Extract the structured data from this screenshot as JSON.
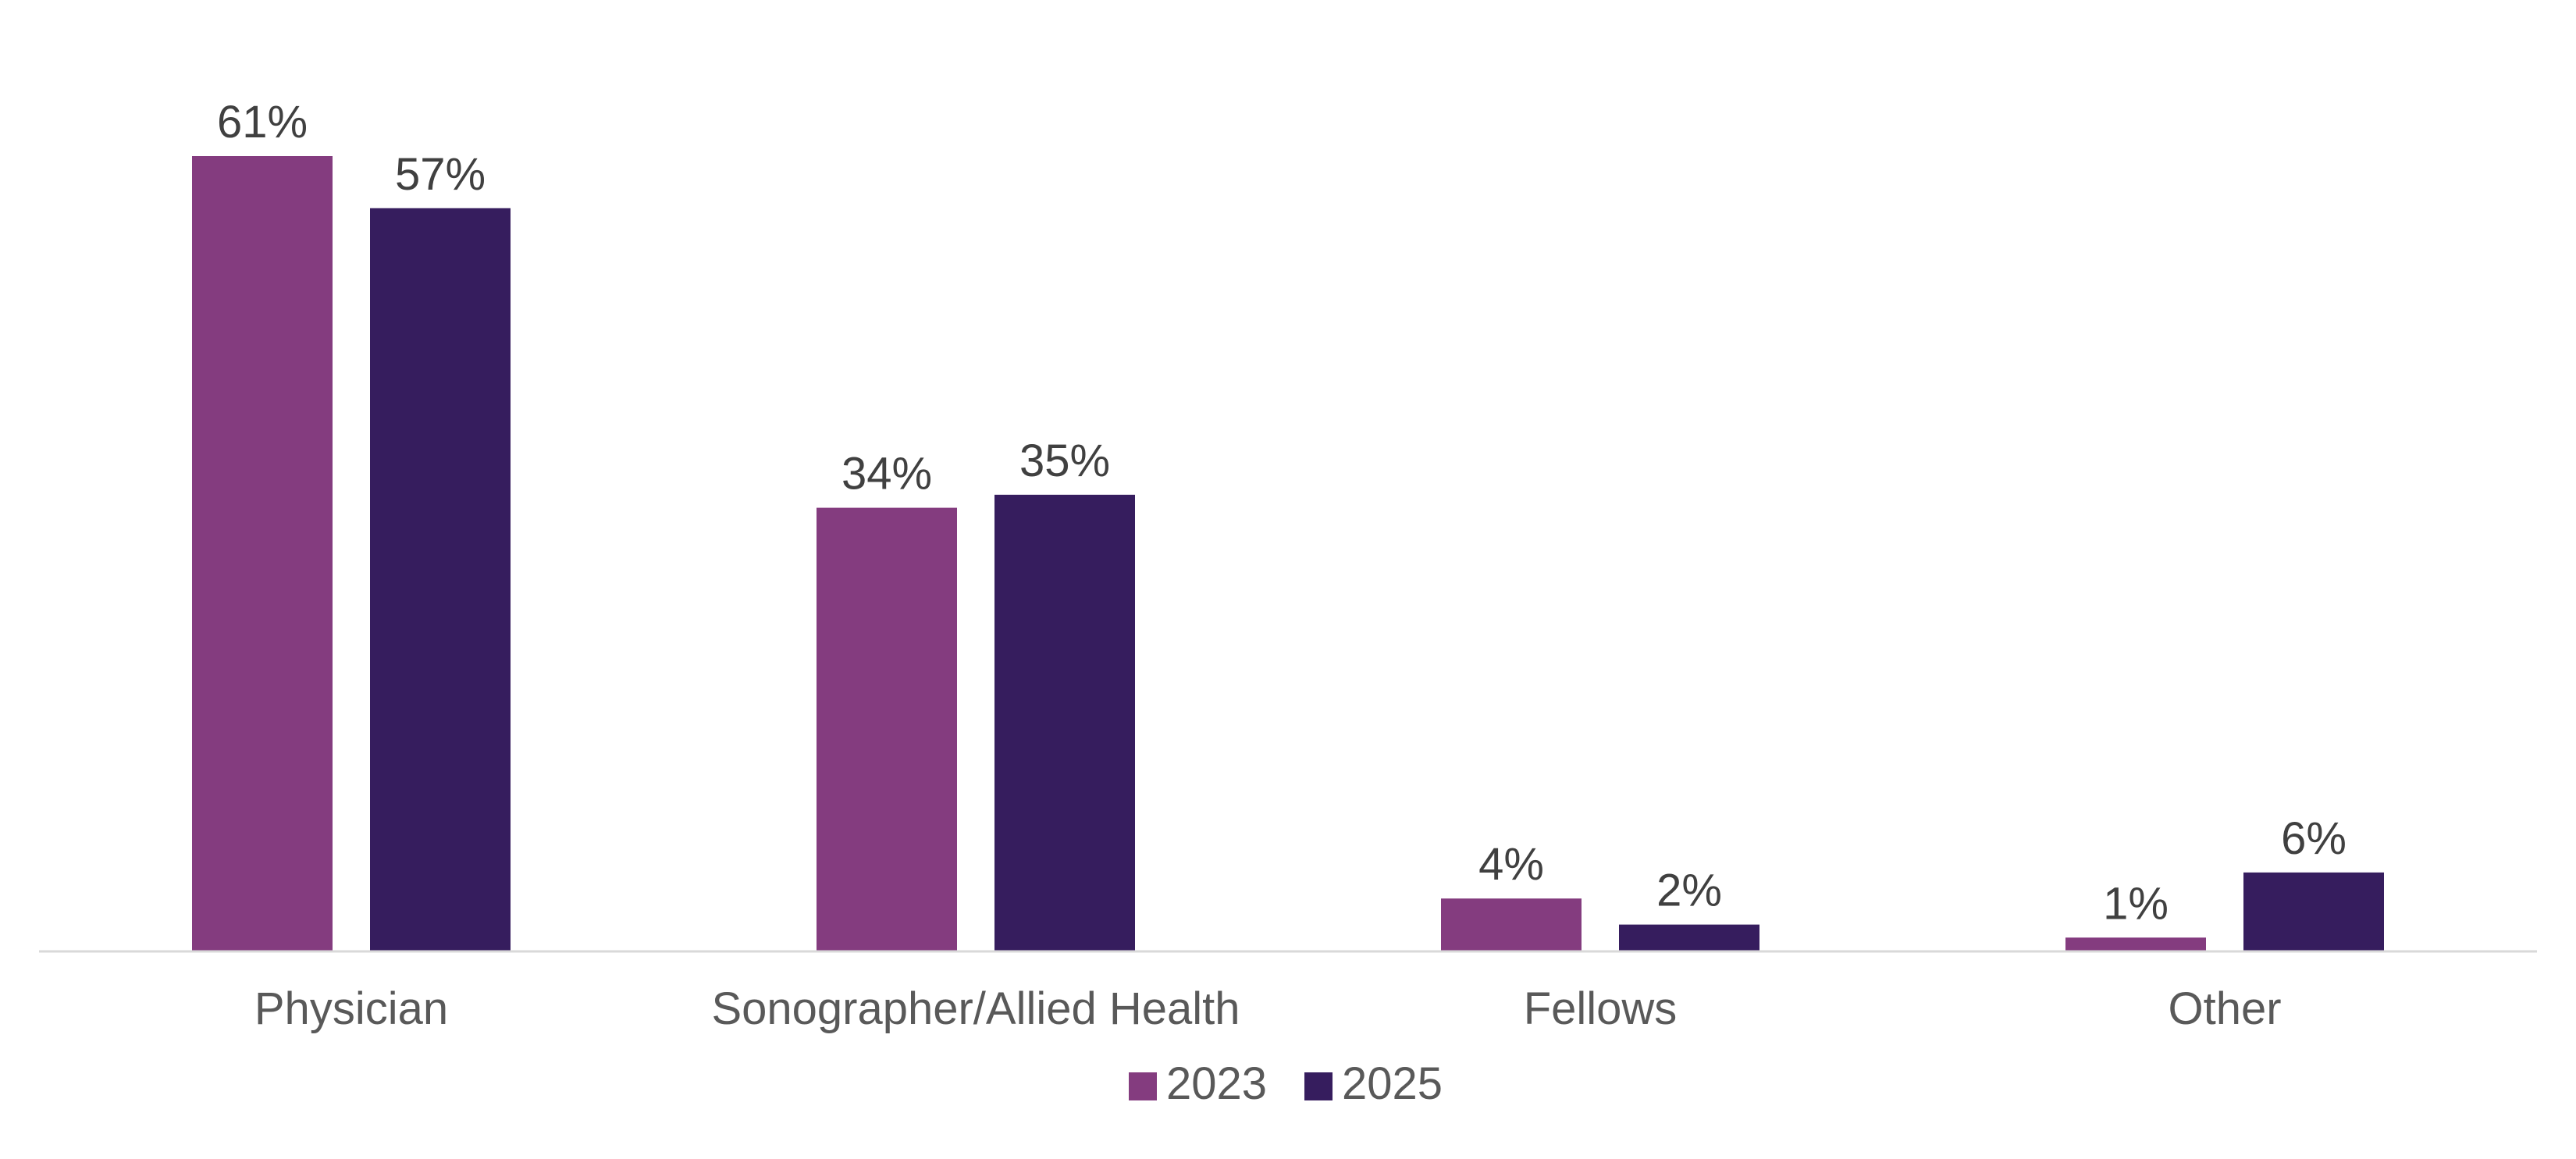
{
  "chart_data": {
    "type": "bar",
    "categories": [
      "Physician",
      "Sonographer/Allied Health",
      "Fellows",
      "Other"
    ],
    "series": [
      {
        "name": "2023",
        "values": [
          61,
          34,
          4,
          1
        ],
        "color": "#843C7F"
      },
      {
        "name": "2025",
        "values": [
          57,
          35,
          2,
          6
        ],
        "color": "#361D5E"
      }
    ],
    "value_suffix": "%",
    "title": "",
    "xlabel": "",
    "ylabel": "",
    "ylim": [
      0,
      61
    ],
    "grid": false,
    "legend_position": "bottom",
    "axis_color": "#D9D9D9",
    "data_label_color": "#404040",
    "category_label_color": "#595959"
  }
}
